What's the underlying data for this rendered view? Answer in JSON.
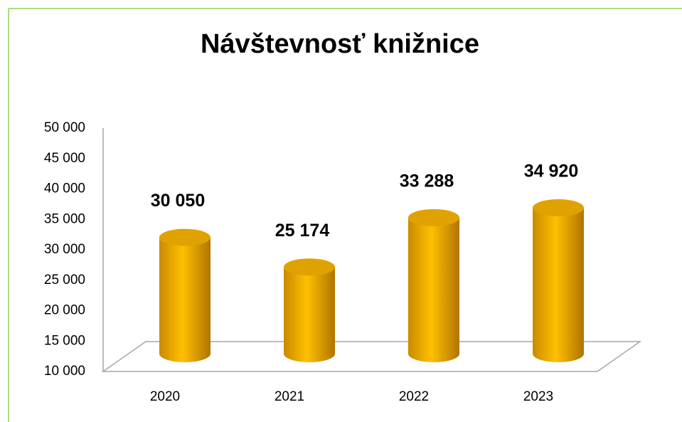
{
  "chart_data": {
    "type": "bar",
    "title": "Návštevnosť knižnice",
    "categories": [
      "2020",
      "2021",
      "2022",
      "2023"
    ],
    "values": [
      30050,
      25174,
      33288,
      34920
    ],
    "value_labels": [
      "30 050",
      "25 174",
      "33 288",
      "34 920"
    ],
    "color": "#ffc000",
    "ylim": [
      10000,
      50000
    ],
    "yticks": [
      {
        "value": 10000,
        "label": "10 000"
      },
      {
        "value": 15000,
        "label": "15 000"
      },
      {
        "value": 20000,
        "label": "20 000"
      },
      {
        "value": 25000,
        "label": "25 000"
      },
      {
        "value": 30000,
        "label": "30 000"
      },
      {
        "value": 35000,
        "label": "35 000"
      },
      {
        "value": 40000,
        "label": "40 000"
      },
      {
        "value": 45000,
        "label": "45 000"
      },
      {
        "value": 50000,
        "label": "50 000"
      }
    ],
    "grid": false
  }
}
